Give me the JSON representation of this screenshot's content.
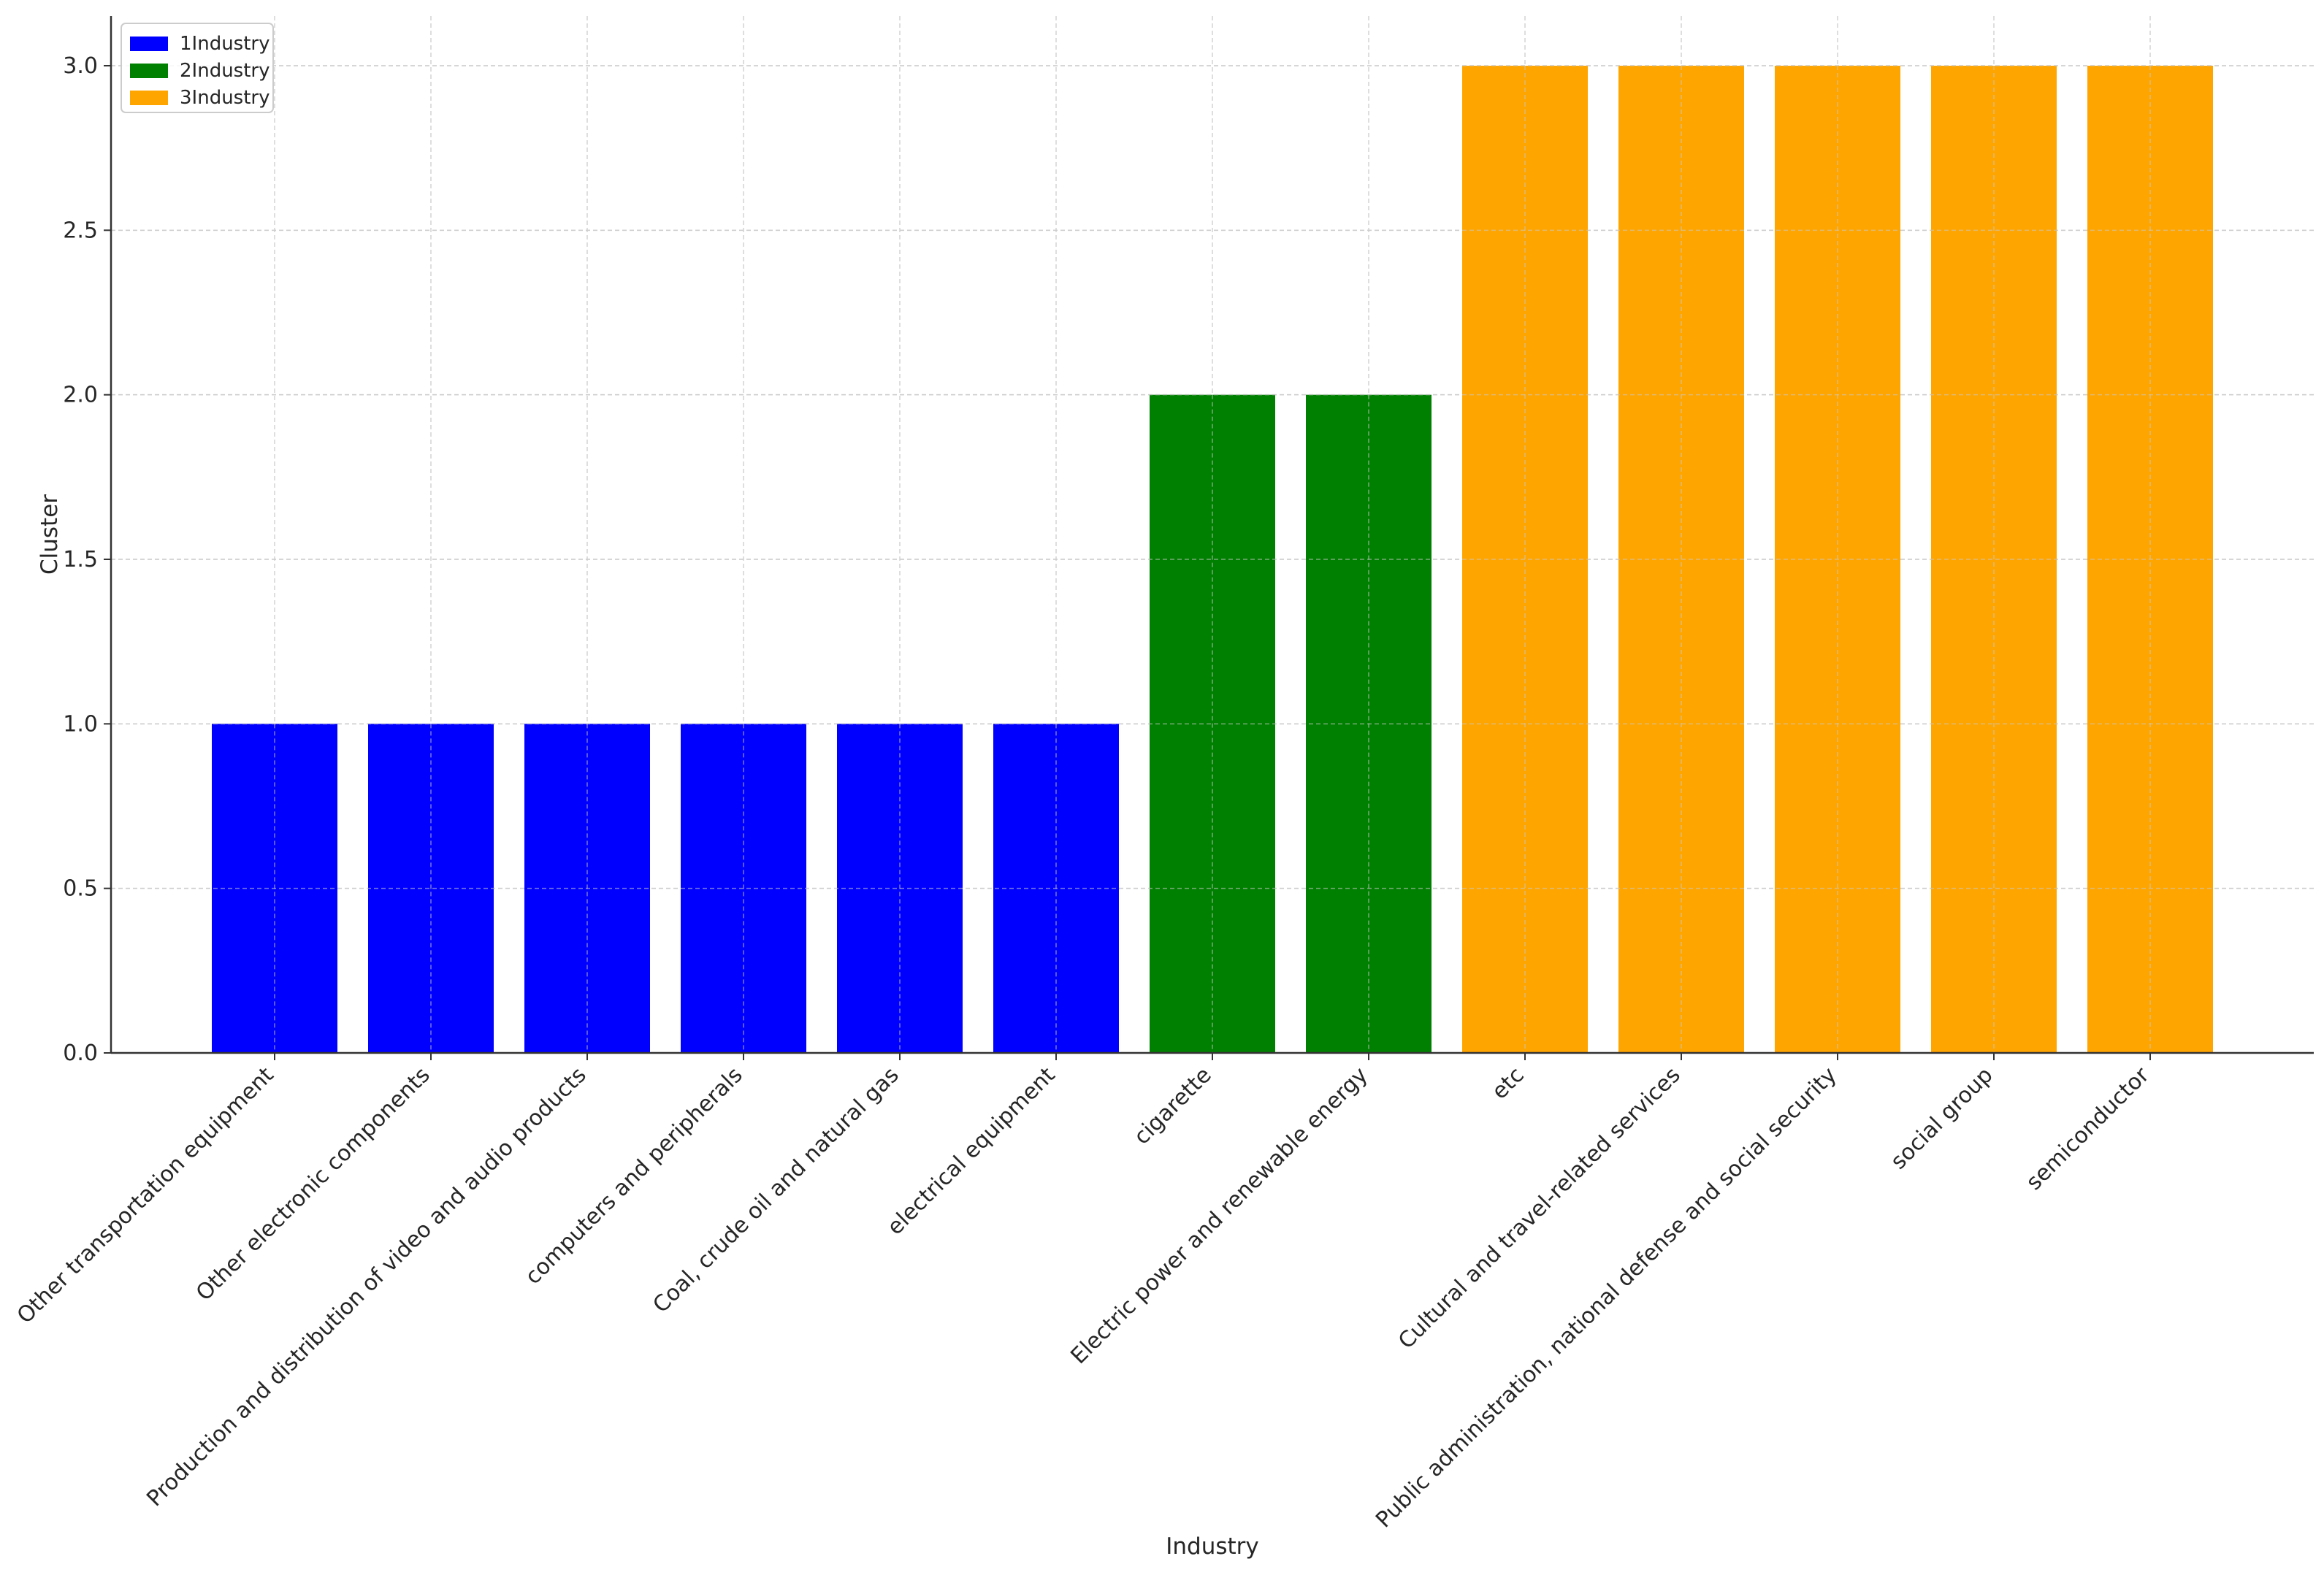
{
  "chart_data": {
    "type": "bar",
    "title": "",
    "xlabel": "Industry",
    "ylabel": "Cluster",
    "ylim": [
      0,
      3.0
    ],
    "yticks": [
      "0.0",
      "0.5",
      "1.0",
      "1.5",
      "2.0",
      "2.5",
      "3.0"
    ],
    "grid": true,
    "legend_position": "top-left",
    "categories": [
      "Other transportation equipment",
      "Other electronic components",
      "Production and distribution of video and audio products",
      "computers and peripherals",
      "Coal, crude oil and natural gas",
      "electrical equipment",
      "cigarette",
      "Electric power and renewable energy",
      "etc",
      "Cultural and travel-related services",
      "Public administration, national defense and social security",
      "social group",
      "semiconductor"
    ],
    "values": [
      1,
      1,
      1,
      1,
      1,
      1,
      2,
      2,
      3,
      3,
      3,
      3,
      3
    ],
    "bar_groups": [
      1,
      1,
      1,
      1,
      1,
      1,
      2,
      2,
      3,
      3,
      3,
      3,
      3
    ],
    "series": [
      {
        "name": "1Industry",
        "color": "#0000ff"
      },
      {
        "name": "2Industry",
        "color": "#008000"
      },
      {
        "name": "3Industry",
        "color": "#ffa500"
      }
    ]
  }
}
